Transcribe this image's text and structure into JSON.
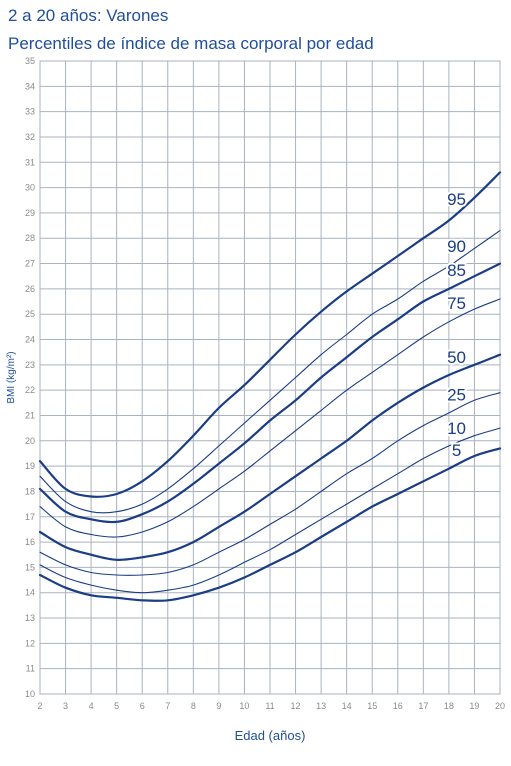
{
  "chart_data": {
    "type": "line",
    "title": "2 a 20 años: Varones",
    "subtitle": "Percentiles de índice de masa corporal por edad",
    "xlabel": "Edad (años)",
    "ylabel": "BMI (kg/m²)",
    "xlim": [
      2,
      20
    ],
    "ylim": [
      10,
      35
    ],
    "x_ticks": [
      2,
      3,
      4,
      5,
      6,
      7,
      8,
      9,
      10,
      11,
      12,
      13,
      14,
      15,
      16,
      17,
      18,
      19,
      20
    ],
    "y_ticks": [
      10,
      11,
      12,
      13,
      14,
      15,
      16,
      17,
      18,
      19,
      20,
      21,
      22,
      23,
      24,
      25,
      26,
      27,
      28,
      29,
      30,
      31,
      32,
      33,
      34,
      35
    ],
    "grid": true,
    "colors": {
      "line": "#1a3d85",
      "grid": "#a9b2bf",
      "text": "#1f4e9c"
    },
    "x": [
      2,
      3,
      4,
      5,
      6,
      7,
      8,
      9,
      10,
      11,
      12,
      13,
      14,
      15,
      16,
      17,
      18,
      19,
      20
    ],
    "series": [
      {
        "name": "95",
        "bold": true,
        "values": [
          19.2,
          18.1,
          17.8,
          17.9,
          18.4,
          19.2,
          20.2,
          21.3,
          22.2,
          23.2,
          24.2,
          25.1,
          25.9,
          26.6,
          27.3,
          28.0,
          28.7,
          29.6,
          30.6
        ]
      },
      {
        "name": "90",
        "bold": false,
        "values": [
          18.6,
          17.6,
          17.2,
          17.2,
          17.5,
          18.1,
          18.9,
          19.8,
          20.7,
          21.6,
          22.5,
          23.4,
          24.2,
          25.0,
          25.6,
          26.3,
          26.9,
          27.6,
          28.3
        ]
      },
      {
        "name": "85",
        "bold": true,
        "values": [
          18.1,
          17.2,
          16.9,
          16.8,
          17.1,
          17.6,
          18.3,
          19.1,
          19.9,
          20.8,
          21.6,
          22.5,
          23.3,
          24.1,
          24.8,
          25.5,
          26.0,
          26.5,
          27.0
        ]
      },
      {
        "name": "75",
        "bold": false,
        "values": [
          17.4,
          16.6,
          16.3,
          16.2,
          16.4,
          16.8,
          17.4,
          18.1,
          18.8,
          19.6,
          20.4,
          21.2,
          22.0,
          22.7,
          23.4,
          24.1,
          24.7,
          25.2,
          25.6
        ]
      },
      {
        "name": "50",
        "bold": true,
        "values": [
          16.4,
          15.8,
          15.5,
          15.3,
          15.4,
          15.6,
          16.0,
          16.6,
          17.2,
          17.9,
          18.6,
          19.3,
          20.0,
          20.8,
          21.5,
          22.1,
          22.6,
          23.0,
          23.4
        ]
      },
      {
        "name": "25",
        "bold": false,
        "values": [
          15.6,
          15.1,
          14.8,
          14.7,
          14.7,
          14.8,
          15.1,
          15.6,
          16.1,
          16.7,
          17.3,
          18.0,
          18.7,
          19.3,
          20.0,
          20.6,
          21.1,
          21.6,
          21.9
        ]
      },
      {
        "name": "10",
        "bold": false,
        "values": [
          15.1,
          14.6,
          14.3,
          14.1,
          14.0,
          14.1,
          14.3,
          14.7,
          15.2,
          15.7,
          16.3,
          16.9,
          17.5,
          18.1,
          18.7,
          19.3,
          19.8,
          20.2,
          20.5
        ]
      },
      {
        "name": "5",
        "bold": true,
        "values": [
          14.7,
          14.2,
          13.9,
          13.8,
          13.7,
          13.7,
          13.9,
          14.2,
          14.6,
          15.1,
          15.6,
          16.2,
          16.8,
          17.4,
          17.9,
          18.4,
          18.9,
          19.4,
          19.7
        ]
      }
    ]
  }
}
